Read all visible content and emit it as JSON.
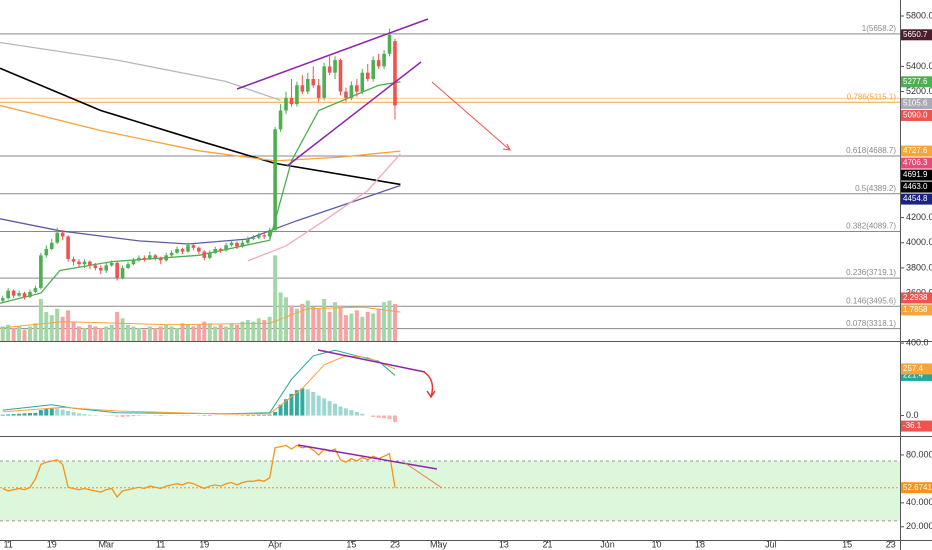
{
  "chart_data": [
    {
      "type": "candlestick",
      "x": [
        -1,
        0,
        1,
        2,
        3,
        4,
        5,
        6,
        7,
        8,
        9,
        10,
        11,
        12,
        13,
        14,
        15,
        16,
        17,
        18,
        19,
        20,
        21,
        22,
        23,
        24,
        25,
        26,
        27,
        28,
        29,
        30,
        31,
        32,
        33,
        34,
        35,
        36,
        37,
        38,
        39,
        40,
        41,
        42,
        43,
        44,
        45,
        46,
        47,
        48,
        49,
        50,
        51,
        52,
        53,
        54,
        55,
        56,
        57,
        58,
        59,
        60,
        61,
        62,
        63,
        64,
        65,
        66,
        67,
        68,
        69,
        70,
        71
      ],
      "open": [
        3540,
        3560,
        3620,
        3580,
        3600,
        3570,
        3610,
        3640,
        3900,
        3950,
        4000,
        4080,
        4050,
        3870,
        3850,
        3830,
        3850,
        3820,
        3800,
        3780,
        3820,
        3840,
        3720,
        3800,
        3830,
        3860,
        3880,
        3870,
        3900,
        3880,
        3860,
        3900,
        3920,
        3950,
        3930,
        3980,
        3960,
        3930,
        3880,
        3920,
        3950,
        3940,
        3980,
        4000,
        3970,
        4000,
        4030,
        4040,
        4060,
        4050,
        4100,
        4900,
        5050,
        5150,
        5100,
        5250,
        5200,
        5300,
        5250,
        5150,
        5400,
        5350,
        5450,
        5200,
        5150,
        5250,
        5200,
        5350,
        5300,
        5450,
        5400,
        5500,
        5600
      ],
      "high": [
        3580,
        3640,
        3630,
        3620,
        3610,
        3630,
        3660,
        3920,
        3980,
        4030,
        4120,
        4100,
        4060,
        3890,
        3870,
        3870,
        3860,
        3840,
        3820,
        3840,
        3860,
        3850,
        3820,
        3850,
        3880,
        3900,
        3900,
        3930,
        3910,
        3890,
        3920,
        3940,
        3970,
        3960,
        4000,
        3990,
        3970,
        3940,
        3940,
        3970,
        3960,
        4000,
        4020,
        4010,
        4020,
        4050,
        4060,
        4080,
        4080,
        4120,
        4920,
        5100,
        5200,
        5300,
        5280,
        5330,
        5350,
        5400,
        5300,
        5430,
        5480,
        5480,
        5460,
        5230,
        5280,
        5300,
        5380,
        5420,
        5480,
        5500,
        5530,
        5700,
        5620
      ],
      "low": [
        3520,
        3550,
        3560,
        3570,
        3550,
        3560,
        3600,
        3630,
        3880,
        3940,
        3990,
        4020,
        3850,
        3820,
        3810,
        3800,
        3790,
        3780,
        3750,
        3760,
        3810,
        3700,
        3710,
        3790,
        3820,
        3850,
        3850,
        3860,
        3860,
        3830,
        3850,
        3890,
        3910,
        3910,
        3920,
        3940,
        3910,
        3860,
        3870,
        3910,
        3920,
        3930,
        3970,
        3950,
        3960,
        3990,
        4020,
        4030,
        4030,
        4040,
        4090,
        4880,
        5020,
        5080,
        5080,
        5180,
        5180,
        5230,
        5120,
        5130,
        5330,
        5300,
        5170,
        5120,
        5130,
        5160,
        5180,
        5280,
        5280,
        5380,
        5380,
        5480,
        4980
      ],
      "close": [
        3560,
        3620,
        3580,
        3600,
        3570,
        3610,
        3640,
        3900,
        3950,
        4000,
        4080,
        4050,
        3870,
        3850,
        3830,
        3850,
        3820,
        3800,
        3780,
        3820,
        3840,
        3720,
        3800,
        3830,
        3860,
        3880,
        3870,
        3900,
        3880,
        3860,
        3900,
        3920,
        3950,
        3930,
        3980,
        3960,
        3930,
        3880,
        3920,
        3950,
        3940,
        3980,
        4000,
        3970,
        4000,
        4030,
        4040,
        4060,
        4050,
        4100,
        4900,
        5050,
        5150,
        5100,
        5250,
        5200,
        5300,
        5250,
        5150,
        5400,
        5350,
        5450,
        5200,
        5150,
        5250,
        5200,
        5350,
        5300,
        5450,
        5400,
        5500,
        5650,
        5090
      ],
      "up_color": "#4caf50",
      "down_color": "#ef5350",
      "xlim": [
        -1.5,
        163.7
      ],
      "ylim": [
        3220,
        5927
      ],
      "yticks": [
        {
          "value": 5800,
          "label": "5800.0"
        },
        {
          "value": 5400,
          "label": "5400.0"
        },
        {
          "value": 5200,
          "label": "5200.0"
        },
        {
          "value": 4200,
          "label": "4200.0"
        },
        {
          "value": 4000,
          "label": "4000.0"
        },
        {
          "value": 3800,
          "label": "3800.0"
        },
        {
          "value": 3600,
          "label": "3600.0"
        }
      ],
      "lines": [
        {
          "color": "#b8b8b8",
          "x": [
            -1.5,
            20,
            40,
            50
          ],
          "values": [
            5590,
            5450,
            5280,
            5130
          ]
        },
        {
          "color": "#000000",
          "x": [
            -1.5,
            17,
            35,
            49,
            72
          ],
          "values": [
            5385,
            5050,
            4810,
            4630,
            4463
          ]
        },
        {
          "color": "#f7a43b",
          "x": [
            -1.5,
            17,
            35,
            49,
            61,
            72
          ],
          "values": [
            5090,
            4890,
            4730,
            4650,
            4680,
            4727.6
          ]
        },
        {
          "color": "#5c5ca8",
          "x": [
            -1.5,
            9.5,
            24,
            33,
            44,
            53,
            72
          ],
          "values": [
            4190,
            4095,
            4015,
            3990,
            4030,
            4175,
            4454.8
          ]
        },
        {
          "color": "#f4a7c0",
          "x": [
            44,
            51,
            58,
            66,
            72
          ],
          "values": [
            3857,
            3976,
            4175,
            4414,
            4706.3
          ]
        },
        {
          "color": "#4caf50",
          "x": [
            -1.5,
            6,
            9.5,
            19,
            35,
            48,
            52,
            57,
            68,
            72
          ],
          "values": [
            3520,
            3600,
            3780,
            3850,
            3900,
            4020,
            4650,
            5050,
            5250,
            5277.6
          ]
        }
      ],
      "levels": [
        {
          "label": "1(5658.2)",
          "value": 5658.2
        },
        {
          "label": "0.786(5115.1)",
          "value": 5115.1
        },
        {
          "label": "0.618(4688.7)",
          "value": 4688.7
        },
        {
          "label": "0.5(4389.2)",
          "value": 4389.2
        },
        {
          "label": "0.382(4089.7)",
          "value": 4089.7
        },
        {
          "label": "0.236(3719.1)",
          "value": 3719.1
        },
        {
          "label": "0.146(3495.6)",
          "value": 3495.6
        },
        {
          "label": "0.078(3318.1)",
          "value": 3318.1
        }
      ],
      "price_labels": [
        {
          "value": 5650.7,
          "label": "5650.7",
          "color": "#4a1c2c"
        },
        {
          "value": 5277.6,
          "label": "5277.6",
          "color": "#4caf50"
        },
        {
          "value": 5105.6,
          "label": "5105.6",
          "color": "#a8abb3"
        },
        {
          "value": 5090,
          "label": "5090.0",
          "color": "#ef5350"
        },
        {
          "value": 4727.6,
          "label": "4727.6",
          "color": "#f7a43b"
        },
        {
          "value": 4706.3,
          "label": "4706.3",
          "color": "#e94a7a"
        },
        {
          "value": 4691.9,
          "label": "4691.9",
          "color": "#000000"
        },
        {
          "value": 4463,
          "label": "4463.0",
          "color": "#000000"
        },
        {
          "value": 4454.8,
          "label": "4454.8",
          "color": "#1a237e"
        }
      ],
      "volume": {
        "values": [
          0.9,
          1.0,
          0.8,
          0.9,
          0.7,
          0.9,
          1.1,
          2.6,
          1.8,
          1.6,
          2.0,
          1.5,
          1.9,
          1.2,
          0.9,
          0.8,
          1.0,
          0.9,
          0.8,
          0.9,
          1.0,
          1.8,
          1.4,
          1.0,
          0.9,
          0.8,
          0.7,
          0.9,
          0.8,
          0.9,
          1.0,
          0.9,
          0.8,
          1.1,
          1.0,
          0.9,
          1.0,
          1.2,
          1.1,
          0.9,
          1.0,
          0.9,
          1.1,
          1.0,
          1.2,
          1.3,
          1.2,
          1.4,
          1.3,
          1.5,
          5.3,
          3.0,
          2.7,
          2.2,
          2.0,
          2.3,
          2.5,
          2.1,
          2.0,
          2.6,
          1.8,
          2.4,
          2.2,
          1.6,
          1.7,
          1.9,
          1.5,
          1.8,
          1.7,
          2.0,
          2.4,
          2.5,
          2.2938
        ],
        "up_color": "#a5d6a7",
        "down_color": "#f5a3a3",
        "ylim": [
          0,
          21.1
        ],
        "ma": {
          "color": "#f7a43b",
          "x": [
            -1.5,
            10,
            30,
            48,
            55,
            65,
            72
          ],
          "values": [
            0.8,
            1.2,
            1.0,
            1.1,
            2.0,
            2.1,
            1.7858
          ]
        }
      }
    },
    {
      "type": "macd",
      "histogram": [
        5,
        6,
        8,
        10,
        12,
        14,
        15,
        30,
        38,
        42,
        40,
        32,
        25,
        18,
        12,
        8,
        5,
        3,
        0,
        -2,
        -3,
        -6,
        -5,
        -4,
        -3,
        -2,
        -1,
        0,
        1,
        2,
        1,
        0,
        -1,
        -2,
        -1,
        0,
        1,
        2,
        2,
        1,
        0,
        -1,
        0,
        1,
        2,
        3,
        3,
        4,
        4,
        5,
        20,
        60,
        90,
        120,
        140,
        150,
        145,
        130,
        110,
        95,
        80,
        65,
        50,
        40,
        30,
        20,
        10,
        0,
        -8,
        -12,
        -15,
        -20,
        -36.1
      ],
      "up_color": "#26a69a",
      "down_color": "#ef5350",
      "series": [
        {
          "color": "#26a69a",
          "x": [
            -1,
            8,
            12,
            20,
            40,
            48,
            52,
            56,
            60,
            64,
            68,
            71
          ],
          "values": [
            30,
            60,
            40,
            15,
            10,
            15,
            200,
            330,
            360,
            330,
            300,
            221.4
          ]
        },
        {
          "color": "#f7a43b",
          "x": [
            -1,
            10,
            20,
            40,
            48,
            54,
            58,
            62,
            66,
            71
          ],
          "values": [
            20,
            45,
            25,
            8,
            10,
            150,
            280,
            330,
            320,
            257.4
          ]
        }
      ],
      "ylim": [
        -113,
        406
      ],
      "yticks": [
        {
          "value": 400,
          "label": "400.0"
        },
        {
          "value": 0,
          "label": "0.0"
        }
      ]
    },
    {
      "type": "line",
      "values": [
        52,
        50,
        51,
        52,
        51,
        53,
        60,
        72,
        74,
        75,
        76,
        72,
        53,
        52,
        51,
        52,
        51,
        50,
        49,
        51,
        52,
        45,
        50,
        51,
        52,
        53,
        52,
        54,
        53,
        52,
        54,
        55,
        56,
        55,
        57,
        56,
        54,
        52,
        54,
        55,
        54,
        56,
        57,
        55,
        57,
        58,
        58,
        59,
        58,
        61,
        86,
        87,
        88,
        85,
        88,
        86,
        87,
        84,
        80,
        85,
        83,
        85,
        76,
        74,
        77,
        75,
        78,
        76,
        79,
        77,
        79,
        81,
        52.6741
      ],
      "color": "#f7931a",
      "band": [
        25,
        75
      ],
      "band_color": "#dcf7dc",
      "ylim": [
        9,
        95
      ],
      "yticks": [
        {
          "value": 80,
          "label": "80.0000"
        },
        {
          "value": 40,
          "label": "40.0000"
        },
        {
          "value": 20,
          "label": "20.0000"
        }
      ],
      "xticks": [
        {
          "value": 0,
          "label": "11"
        },
        {
          "value": 8,
          "label": "19"
        },
        {
          "value": 18,
          "label": "Mar"
        },
        {
          "value": 28,
          "label": "11"
        },
        {
          "value": 36,
          "label": "19"
        },
        {
          "value": 49,
          "label": "Apr"
        },
        {
          "value": 63,
          "label": "15"
        },
        {
          "value": 71,
          "label": "23"
        },
        {
          "value": 79,
          "label": "May"
        },
        {
          "value": 91,
          "label": "13"
        },
        {
          "value": 99,
          "label": "21"
        },
        {
          "value": 110,
          "label": "Jun"
        },
        {
          "value": 119,
          "label": "10"
        },
        {
          "value": 127,
          "label": "18"
        },
        {
          "value": 140,
          "label": "Jul"
        },
        {
          "value": 154,
          "label": "15"
        },
        {
          "value": 162,
          "label": "23"
        }
      ]
    }
  ]
}
